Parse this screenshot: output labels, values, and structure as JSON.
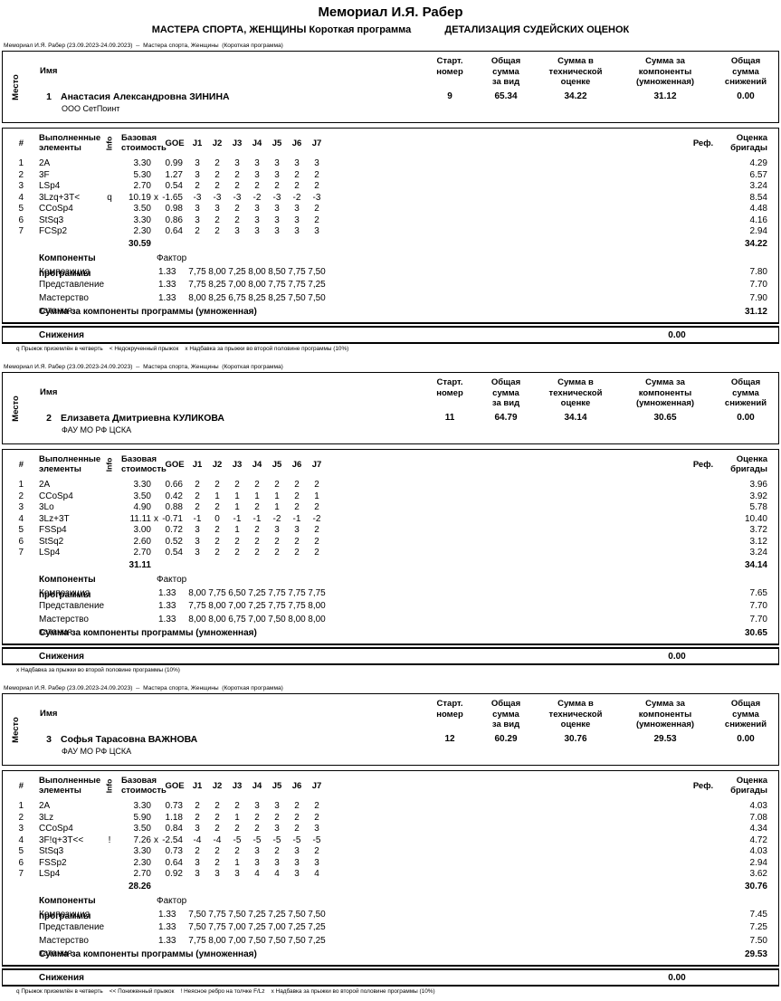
{
  "page": {
    "title": "Мемориал И.Я. Рабер",
    "subtitle_left": "МАСТЕРА СПОРТА, ЖЕНЩИНЫ Короткая программа",
    "subtitle_right": "ДЕТАЛИЗАЦИЯ СУДЕЙСКИХ ОЦЕНОК"
  },
  "colors": {
    "text": "#000000",
    "border": "#000000",
    "background": "#ffffff"
  },
  "labels": {
    "event_line": "Мемориал И.Я. Рабер (23.09.2023-24.09.2023)  --  Мастера спорта, Женщины  (Короткая программа)",
    "place": "Место",
    "name": "Имя",
    "start_number": "Старт.\nномер",
    "total_segment": "Общая\nсумма\nза вид",
    "technical": "Сумма в\nтехнической\nоценке",
    "components": "Сумма за\nкомпоненты\n(умноженная)",
    "deductions_total": "Общая\nсумма\nснижений",
    "num": "#",
    "executed_elements": "Выполненные\nэлементы",
    "info": "Info",
    "base_value": "Базовая\nстоимость",
    "goe": "GOE",
    "judges": [
      "J1",
      "J2",
      "J3",
      "J4",
      "J5",
      "J6",
      "J7"
    ],
    "ref": "Реф.",
    "panel_score": "Оценка\nбригады",
    "program_components": "Компоненты программы",
    "factor": "Фактор",
    "components_sum_label": "Сумма за компоненты программы (умноженная)",
    "deductions": "Снижения"
  },
  "skaters": [
    {
      "place": "1",
      "name": "Анастасия Александровна ЗИНИНА",
      "club": "ООО СетПоинт",
      "start_number": "9",
      "total": "65.34",
      "technical": "34.22",
      "components_sum": "31.12",
      "deductions_total": "0.00",
      "elements": [
        {
          "num": "1",
          "name": "2A",
          "info": "",
          "base": "3.30",
          "x": "",
          "goe": "0.99",
          "j": [
            "3",
            "2",
            "3",
            "3",
            "3",
            "3",
            "3"
          ],
          "score": "4.29"
        },
        {
          "num": "2",
          "name": "3F",
          "info": "",
          "base": "5.30",
          "x": "",
          "goe": "1.27",
          "j": [
            "3",
            "2",
            "2",
            "3",
            "3",
            "2",
            "2"
          ],
          "score": "6.57"
        },
        {
          "num": "3",
          "name": "LSp4",
          "info": "",
          "base": "2.70",
          "x": "",
          "goe": "0.54",
          "j": [
            "2",
            "2",
            "2",
            "2",
            "2",
            "2",
            "2"
          ],
          "score": "3.24"
        },
        {
          "num": "4",
          "name": "3Lzq+3T<",
          "info": "q",
          "base": "10.19",
          "x": "x",
          "goe": "-1.65",
          "j": [
            "-3",
            "-3",
            "-3",
            "-2",
            "-3",
            "-2",
            "-3"
          ],
          "score": "8.54"
        },
        {
          "num": "5",
          "name": "CCoSp4",
          "info": "",
          "base": "3.50",
          "x": "",
          "goe": "0.98",
          "j": [
            "3",
            "3",
            "2",
            "3",
            "3",
            "3",
            "2"
          ],
          "score": "4.48"
        },
        {
          "num": "6",
          "name": "StSq3",
          "info": "",
          "base": "3.30",
          "x": "",
          "goe": "0.86",
          "j": [
            "3",
            "2",
            "2",
            "3",
            "3",
            "3",
            "2"
          ],
          "score": "4.16"
        },
        {
          "num": "7",
          "name": "FCSp2",
          "info": "",
          "base": "2.30",
          "x": "",
          "goe": "0.64",
          "j": [
            "2",
            "2",
            "3",
            "3",
            "3",
            "3",
            "3"
          ],
          "score": "2.94"
        }
      ],
      "base_total": "30.59",
      "elements_total": "34.22",
      "components": [
        {
          "name": "Композиция",
          "factor": "1.33",
          "j": [
            "7,75",
            "8,00",
            "7,25",
            "8,00",
            "8,50",
            "7,75",
            "7,50"
          ],
          "score": "7.80"
        },
        {
          "name": "Представление",
          "factor": "1.33",
          "j": [
            "7,75",
            "8,25",
            "7,00",
            "8,00",
            "7,75",
            "7,75",
            "7,25"
          ],
          "score": "7.70"
        },
        {
          "name": "Мастерство катания",
          "factor": "1.33",
          "j": [
            "8,00",
            "8,25",
            "6,75",
            "8,25",
            "8,25",
            "7,50",
            "7,50"
          ],
          "score": "7.90"
        }
      ],
      "components_total": "31.12",
      "deductions_value": "0.00",
      "footnote": "q Прыжок приземлён в четверть    < Недокрученный прыжок    x Надбавка за прыжки во второй половине программы (10%)"
    },
    {
      "place": "2",
      "name": "Елизавета Дмитриевна КУЛИКОВА",
      "club": "ФАУ МО РФ ЦСКА",
      "start_number": "11",
      "total": "64.79",
      "technical": "34.14",
      "components_sum": "30.65",
      "deductions_total": "0.00",
      "elements": [
        {
          "num": "1",
          "name": "2A",
          "info": "",
          "base": "3.30",
          "x": "",
          "goe": "0.66",
          "j": [
            "2",
            "2",
            "2",
            "2",
            "2",
            "2",
            "2"
          ],
          "score": "3.96"
        },
        {
          "num": "2",
          "name": "CCoSp4",
          "info": "",
          "base": "3.50",
          "x": "",
          "goe": "0.42",
          "j": [
            "2",
            "1",
            "1",
            "1",
            "1",
            "2",
            "1"
          ],
          "score": "3.92"
        },
        {
          "num": "3",
          "name": "3Lo",
          "info": "",
          "base": "4.90",
          "x": "",
          "goe": "0.88",
          "j": [
            "2",
            "2",
            "1",
            "2",
            "1",
            "2",
            "2"
          ],
          "score": "5.78"
        },
        {
          "num": "4",
          "name": "3Lz+3T",
          "info": "",
          "base": "11.11",
          "x": "x",
          "goe": "-0.71",
          "j": [
            "-1",
            "0",
            "-1",
            "-1",
            "-2",
            "-1",
            "-2"
          ],
          "score": "10.40"
        },
        {
          "num": "5",
          "name": "FSSp4",
          "info": "",
          "base": "3.00",
          "x": "",
          "goe": "0.72",
          "j": [
            "3",
            "2",
            "1",
            "2",
            "3",
            "3",
            "2"
          ],
          "score": "3.72"
        },
        {
          "num": "6",
          "name": "StSq2",
          "info": "",
          "base": "2.60",
          "x": "",
          "goe": "0.52",
          "j": [
            "3",
            "2",
            "2",
            "2",
            "2",
            "2",
            "2"
          ],
          "score": "3.12"
        },
        {
          "num": "7",
          "name": "LSp4",
          "info": "",
          "base": "2.70",
          "x": "",
          "goe": "0.54",
          "j": [
            "3",
            "2",
            "2",
            "2",
            "2",
            "2",
            "2"
          ],
          "score": "3.24"
        }
      ],
      "base_total": "31.11",
      "elements_total": "34.14",
      "components": [
        {
          "name": "Композиция",
          "factor": "1.33",
          "j": [
            "8,00",
            "7,75",
            "6,50",
            "7,25",
            "7,75",
            "7,75",
            "7,75"
          ],
          "score": "7.65"
        },
        {
          "name": "Представление",
          "factor": "1.33",
          "j": [
            "7,75",
            "8,00",
            "7,00",
            "7,25",
            "7,75",
            "7,75",
            "8,00"
          ],
          "score": "7.70"
        },
        {
          "name": "Мастерство катания",
          "factor": "1.33",
          "j": [
            "8,00",
            "8,00",
            "6,75",
            "7,00",
            "7,50",
            "8,00",
            "8,00"
          ],
          "score": "7.70"
        }
      ],
      "components_total": "30.65",
      "deductions_value": "0.00",
      "footnote": "x Надбавка за прыжки во второй половине программы (10%)"
    },
    {
      "place": "3",
      "name": "Софья Тарасовна ВАЖНОВА",
      "club": "ФАУ МО РФ ЦСКА",
      "start_number": "12",
      "total": "60.29",
      "technical": "30.76",
      "components_sum": "29.53",
      "deductions_total": "0.00",
      "elements": [
        {
          "num": "1",
          "name": "2A",
          "info": "",
          "base": "3.30",
          "x": "",
          "goe": "0.73",
          "j": [
            "2",
            "2",
            "2",
            "3",
            "3",
            "2",
            "2"
          ],
          "score": "4.03"
        },
        {
          "num": "2",
          "name": "3Lz",
          "info": "",
          "base": "5.90",
          "x": "",
          "goe": "1.18",
          "j": [
            "2",
            "2",
            "1",
            "2",
            "2",
            "2",
            "2"
          ],
          "score": "7.08"
        },
        {
          "num": "3",
          "name": "CCoSp4",
          "info": "",
          "base": "3.50",
          "x": "",
          "goe": "0.84",
          "j": [
            "3",
            "2",
            "2",
            "2",
            "3",
            "2",
            "3"
          ],
          "score": "4.34"
        },
        {
          "num": "4",
          "name": "3F!q+3T<<",
          "info": "!",
          "base": "7.26",
          "x": "x",
          "goe": "-2.54",
          "j": [
            "-4",
            "-4",
            "-5",
            "-5",
            "-5",
            "-5",
            "-5"
          ],
          "score": "4.72"
        },
        {
          "num": "5",
          "name": "StSq3",
          "info": "",
          "base": "3.30",
          "x": "",
          "goe": "0.73",
          "j": [
            "2",
            "2",
            "2",
            "3",
            "2",
            "3",
            "2"
          ],
          "score": "4.03"
        },
        {
          "num": "6",
          "name": "FSSp2",
          "info": "",
          "base": "2.30",
          "x": "",
          "goe": "0.64",
          "j": [
            "3",
            "2",
            "1",
            "3",
            "3",
            "3",
            "3"
          ],
          "score": "2.94"
        },
        {
          "num": "7",
          "name": "LSp4",
          "info": "",
          "base": "2.70",
          "x": "",
          "goe": "0.92",
          "j": [
            "3",
            "3",
            "3",
            "4",
            "4",
            "3",
            "4"
          ],
          "score": "3.62"
        }
      ],
      "base_total": "28.26",
      "elements_total": "30.76",
      "components": [
        {
          "name": "Композиция",
          "factor": "1.33",
          "j": [
            "7,50",
            "7,75",
            "7,50",
            "7,25",
            "7,25",
            "7,50",
            "7,50"
          ],
          "score": "7.45"
        },
        {
          "name": "Представление",
          "factor": "1.33",
          "j": [
            "7,50",
            "7,75",
            "7,00",
            "7,25",
            "7,00",
            "7,25",
            "7,25"
          ],
          "score": "7.25"
        },
        {
          "name": "Мастерство катания",
          "factor": "1.33",
          "j": [
            "7,75",
            "8,00",
            "7,00",
            "7,50",
            "7,50",
            "7,50",
            "7,25"
          ],
          "score": "7.50"
        }
      ],
      "components_total": "29.53",
      "deductions_value": "0.00",
      "footnote": "q Прыжок приземлён в четверть    << Пониженный прыжок    ! Неясное ребро на толчке F/Lz    x Надбавка за прыжки во второй половине программы (10%)"
    }
  ]
}
